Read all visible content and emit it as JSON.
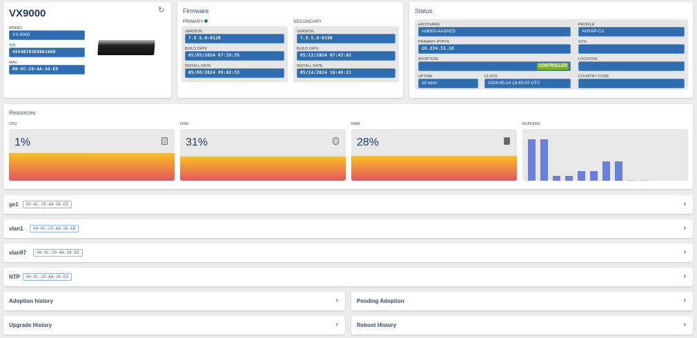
{
  "device": {
    "title": "VX9000",
    "model_label": "MODEL",
    "model": "VX-9000",
    "sn_label": "S/N",
    "sn": "4584B703E8661668",
    "mac_label": "MAC",
    "mac": "00-0C-29-AA-3A-ED"
  },
  "firmware": {
    "title": "Firmware",
    "primary": {
      "label": "PRIMARY",
      "version_label": "VERSION",
      "version": "7.9.5.0-012R",
      "build_label": "BUILD DATE",
      "build": "05/05/2024 07:39:35",
      "install_label": "INSTALL DATE",
      "install": "05/08/2024 09:02:53"
    },
    "secondary": {
      "label": "SECONDARY",
      "version_label": "VERSION",
      "version": "7.9.5.0-015R",
      "build_label": "BUILD DATE",
      "build": "05/12/2024 07:43:02",
      "install_label": "INSTALL DATE",
      "install": "05/14/2024 10:40:21"
    }
  },
  "status": {
    "title": "Status",
    "hostname_label": "HOSTNAME",
    "hostname": "vx9000-AA3AED",
    "ip_label": "PRIMARY IP/IPV6",
    "ip": "10.234.51.18",
    "adoption_label": "ADOPTION",
    "adoption_badge": "CONTROLLER",
    "uptime_label": "UPTIME",
    "uptime": "10 secs",
    "clock_label": "CLOCK",
    "clock": "2024-05-14 13:45:02 UTC",
    "profile_label": "PROFILE",
    "profile": "ANYAP-CX",
    "site_label": "SITE",
    "location_label": "LOCATION",
    "country_label": "COUNTRY CODE"
  },
  "resources": {
    "title": "Resources",
    "cpu_label": "CPU",
    "cpu": "1%",
    "cpu_value": 1,
    "disk_label": "DISK",
    "disk": "31%",
    "disk_value": 31,
    "ram_label": "RAM",
    "ram": "28%",
    "ram_value": 28,
    "buffers_label": "BUFFERS",
    "buffers": [
      80,
      80,
      10,
      10,
      19,
      19,
      38,
      38,
      2,
      1,
      0.5
    ]
  },
  "interfaces": [
    {
      "name": "ge1",
      "mac": "00-0C-29-AA-3A-ED"
    },
    {
      "name": "vlan1",
      "mac": "00-0C-29-AA-3A-ED"
    },
    {
      "name": "vlan97",
      "mac": "00-0C-29-AA-3A-ED"
    },
    {
      "name": "NTP",
      "mac": "00-0C-29-AA-3A-ED"
    }
  ],
  "panels": {
    "adoption_history": "Adoption history",
    "pending_adoption": "Pending Adoption",
    "upgrade_history": "Upgrade History",
    "reboot_history": "Reboot History"
  },
  "colors": {
    "field": "#2f6db3",
    "badge": "#7cb518",
    "gradient_top": "#fbbf24",
    "gradient_bottom": "#e25563",
    "buffer_bar": "#6b7fdc"
  }
}
